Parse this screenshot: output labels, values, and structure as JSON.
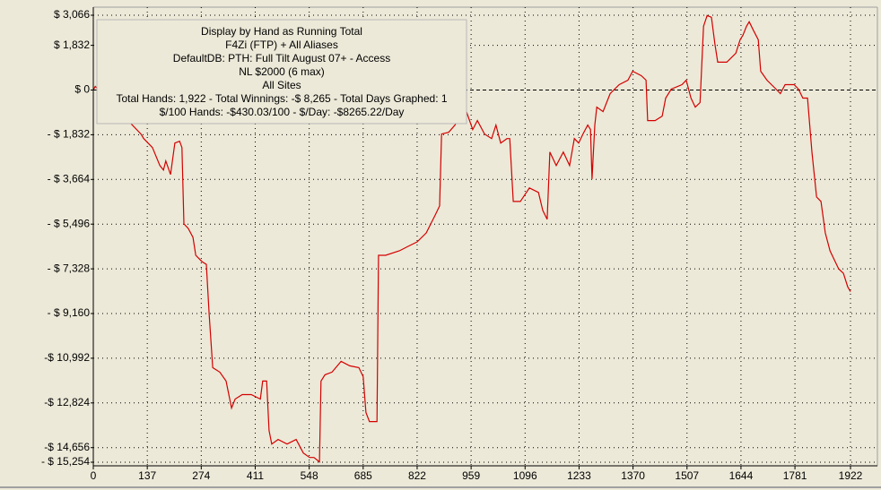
{
  "chart_data": {
    "type": "line",
    "annotation": [
      "Display by Hand as Running Total",
      "F4Zi (FTP) + All Aliases",
      "DefaultDB: PTH: Full Tilt August 07+ - Access",
      "NL $2000 (6 max)",
      "All Sites",
      "Total Hands: 1,922 - Total Winnings: -$ 8,265 - Total Days Graphed: 1",
      "$/100 Hands: -$430.03/100 - $/Day: -$8265.22/Day"
    ],
    "color": "#d40000",
    "grid": true,
    "xlim": [
      0,
      1922
    ],
    "xticks": [
      0,
      137,
      274,
      411,
      548,
      685,
      822,
      959,
      1096,
      1233,
      1370,
      1507,
      1644,
      1781,
      1922
    ],
    "ylim": [
      -15254,
      3066
    ],
    "yticks": [
      {
        "value": 3066,
        "label": "$ 3,066"
      },
      {
        "value": 1832,
        "label": "$ 1,832"
      },
      {
        "value": 0,
        "label": "$ 0"
      },
      {
        "value": -1832,
        "label": "- $ 1,832"
      },
      {
        "value": -3664,
        "label": "- $ 3,664"
      },
      {
        "value": -5496,
        "label": "- $ 5,496"
      },
      {
        "value": -7328,
        "label": "- $ 7,328"
      },
      {
        "value": -9160,
        "label": "- $ 9,160"
      },
      {
        "value": -10992,
        "label": "-$ 10,992"
      },
      {
        "value": -12824,
        "label": "-$ 12,824"
      },
      {
        "value": -14656,
        "label": "-$ 14,656"
      },
      {
        "value": -15254,
        "label": "- $ 15,254"
      }
    ],
    "x": [
      0,
      5,
      121,
      128,
      150,
      169,
      178,
      184,
      196,
      207,
      219,
      225,
      230,
      241,
      253,
      260,
      276,
      287,
      294,
      303,
      321,
      337,
      351,
      360,
      378,
      401,
      424,
      430,
      440,
      446,
      453,
      469,
      492,
      515,
      533,
      549,
      560,
      574,
      578,
      588,
      606,
      629,
      651,
      674,
      685,
      692,
      701,
      720,
      724,
      742,
      777,
      799,
      822,
      845,
      868,
      879,
      884,
      902,
      918,
      936,
      947,
      963,
      975,
      993,
      1011,
      1022,
      1034,
      1050,
      1057,
      1066,
      1084,
      1107,
      1130,
      1141,
      1152,
      1159,
      1175,
      1193,
      1209,
      1221,
      1232,
      1243,
      1255,
      1262,
      1266,
      1273,
      1278,
      1294,
      1312,
      1335,
      1357,
      1369,
      1391,
      1403,
      1407,
      1426,
      1444,
      1453,
      1467,
      1494,
      1505,
      1517,
      1528,
      1540,
      1549,
      1558,
      1569,
      1578,
      1585,
      1608,
      1631,
      1642,
      1649,
      1658,
      1665,
      1676,
      1688,
      1694,
      1710,
      1733,
      1744,
      1756,
      1779,
      1790,
      1801,
      1813,
      1824,
      1836,
      1847,
      1858,
      1870,
      1881,
      1892,
      1904,
      1915,
      1922
    ],
    "values": [
      0,
      147,
      -1804,
      -1988,
      -2356,
      -3093,
      -3277,
      -2909,
      -3461,
      -2172,
      -2098,
      -2356,
      -5486,
      -5670,
      -6038,
      -6775,
      -7033,
      -7143,
      -9168,
      -11377,
      -11561,
      -11929,
      -13034,
      -12666,
      -12482,
      -12482,
      -12666,
      -11929,
      -11929,
      -13955,
      -14507,
      -14323,
      -14507,
      -14323,
      -14875,
      -15059,
      -15059,
      -15240,
      -11929,
      -11672,
      -11561,
      -11119,
      -11304,
      -11377,
      -11746,
      -13218,
      -13586,
      -13586,
      -6775,
      -6775,
      -6591,
      -6407,
      -6223,
      -5854,
      -5118,
      -4750,
      -1804,
      -1731,
      -1436,
      -884,
      -884,
      -1620,
      -1252,
      -1804,
      -1988,
      -1436,
      -2172,
      -1988,
      -1988,
      -4566,
      -4566,
      -4013,
      -4197,
      -4934,
      -5302,
      -2541,
      -3093,
      -2541,
      -3093,
      -1988,
      -2172,
      -1804,
      -1436,
      -1620,
      -3645,
      -1436,
      -700,
      -884,
      -147,
      221,
      405,
      773,
      589,
      405,
      -1252,
      -1252,
      -1068,
      -331,
      37,
      221,
      405,
      -331,
      -700,
      -515,
      2614,
      3056,
      2982,
      1878,
      1141,
      1141,
      1510,
      2062,
      2246,
      2614,
      2798,
      2430,
      2062,
      773,
      405,
      37,
      -147,
      221,
      221,
      37,
      -331,
      -331,
      -2541,
      -4382,
      -4566,
      -5854,
      -6591,
      -6959,
      -7327,
      -7511,
      -8064,
      -8265
    ]
  }
}
